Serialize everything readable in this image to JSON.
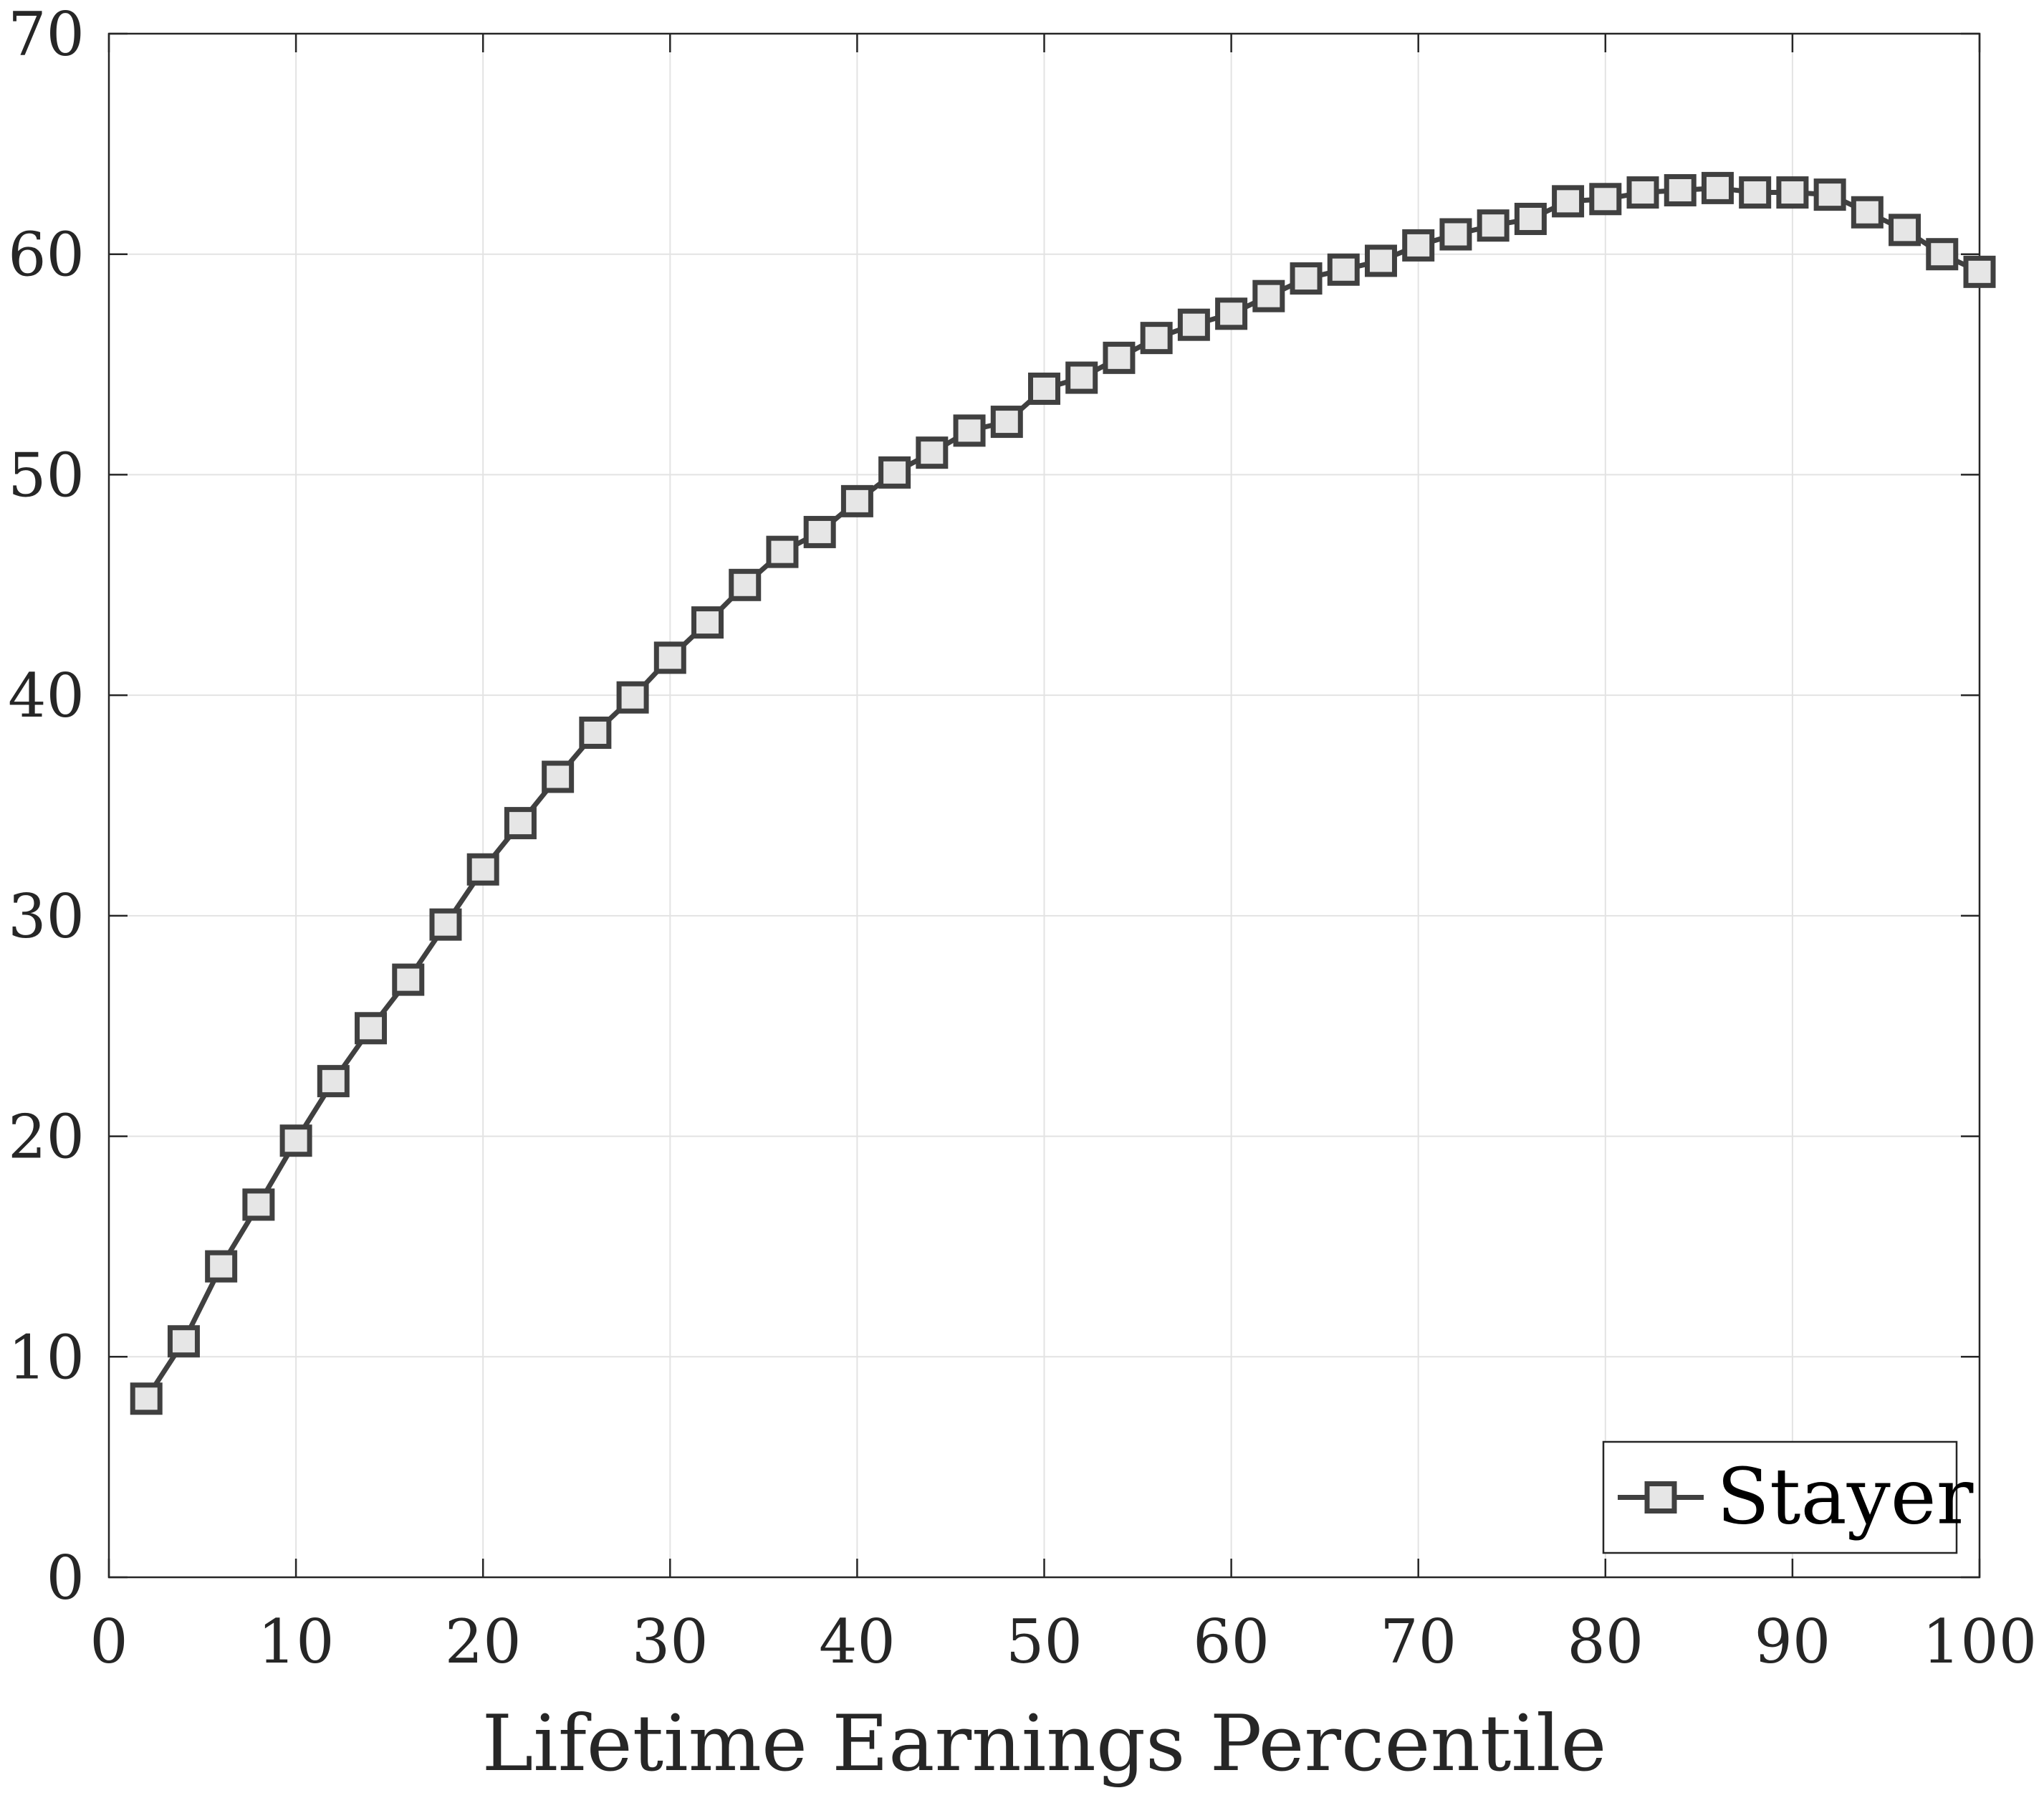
{
  "chart_data": {
    "type": "line",
    "title": "",
    "xlabel": "Lifetime Earnings Percentile",
    "ylabel": "",
    "xlim": [
      0,
      100
    ],
    "ylim": [
      0,
      70
    ],
    "xticks": [
      "0",
      "10",
      "20",
      "30",
      "40",
      "50",
      "60",
      "70",
      "80",
      "90",
      "100"
    ],
    "yticks": [
      "0",
      "10",
      "20",
      "30",
      "40",
      "50",
      "60",
      "70"
    ],
    "grid": true,
    "legend_position": "bottom-right",
    "line_color": "#404040",
    "marker_fill": "#e6e6e6",
    "grid_color": "#e3e3e3",
    "series": [
      {
        "name": "Stayer",
        "marker": "square",
        "x": [
          2,
          4,
          6,
          8,
          10,
          12,
          14,
          16,
          18,
          20,
          22,
          24,
          26,
          28,
          30,
          32,
          34,
          36,
          38,
          40,
          42,
          44,
          46,
          48,
          50,
          52,
          54,
          56,
          58,
          60,
          62,
          64,
          66,
          68,
          70,
          72,
          74,
          76,
          78,
          80,
          82,
          84,
          86,
          88,
          90,
          92,
          94,
          96,
          98,
          100
        ],
        "values": [
          8.1,
          10.7,
          14.1,
          16.9,
          19.8,
          22.5,
          24.9,
          27.1,
          29.6,
          32.1,
          34.2,
          36.3,
          38.3,
          39.9,
          41.7,
          43.3,
          45.0,
          46.5,
          47.4,
          48.8,
          50.1,
          51.0,
          52.0,
          52.4,
          53.9,
          54.4,
          55.3,
          56.2,
          56.8,
          57.3,
          58.1,
          58.9,
          59.3,
          59.7,
          60.4,
          60.9,
          61.3,
          61.6,
          62.4,
          62.5,
          62.8,
          62.9,
          63.0,
          62.8,
          62.8,
          62.7,
          61.9,
          61.1,
          60.0,
          59.2
        ]
      }
    ]
  }
}
